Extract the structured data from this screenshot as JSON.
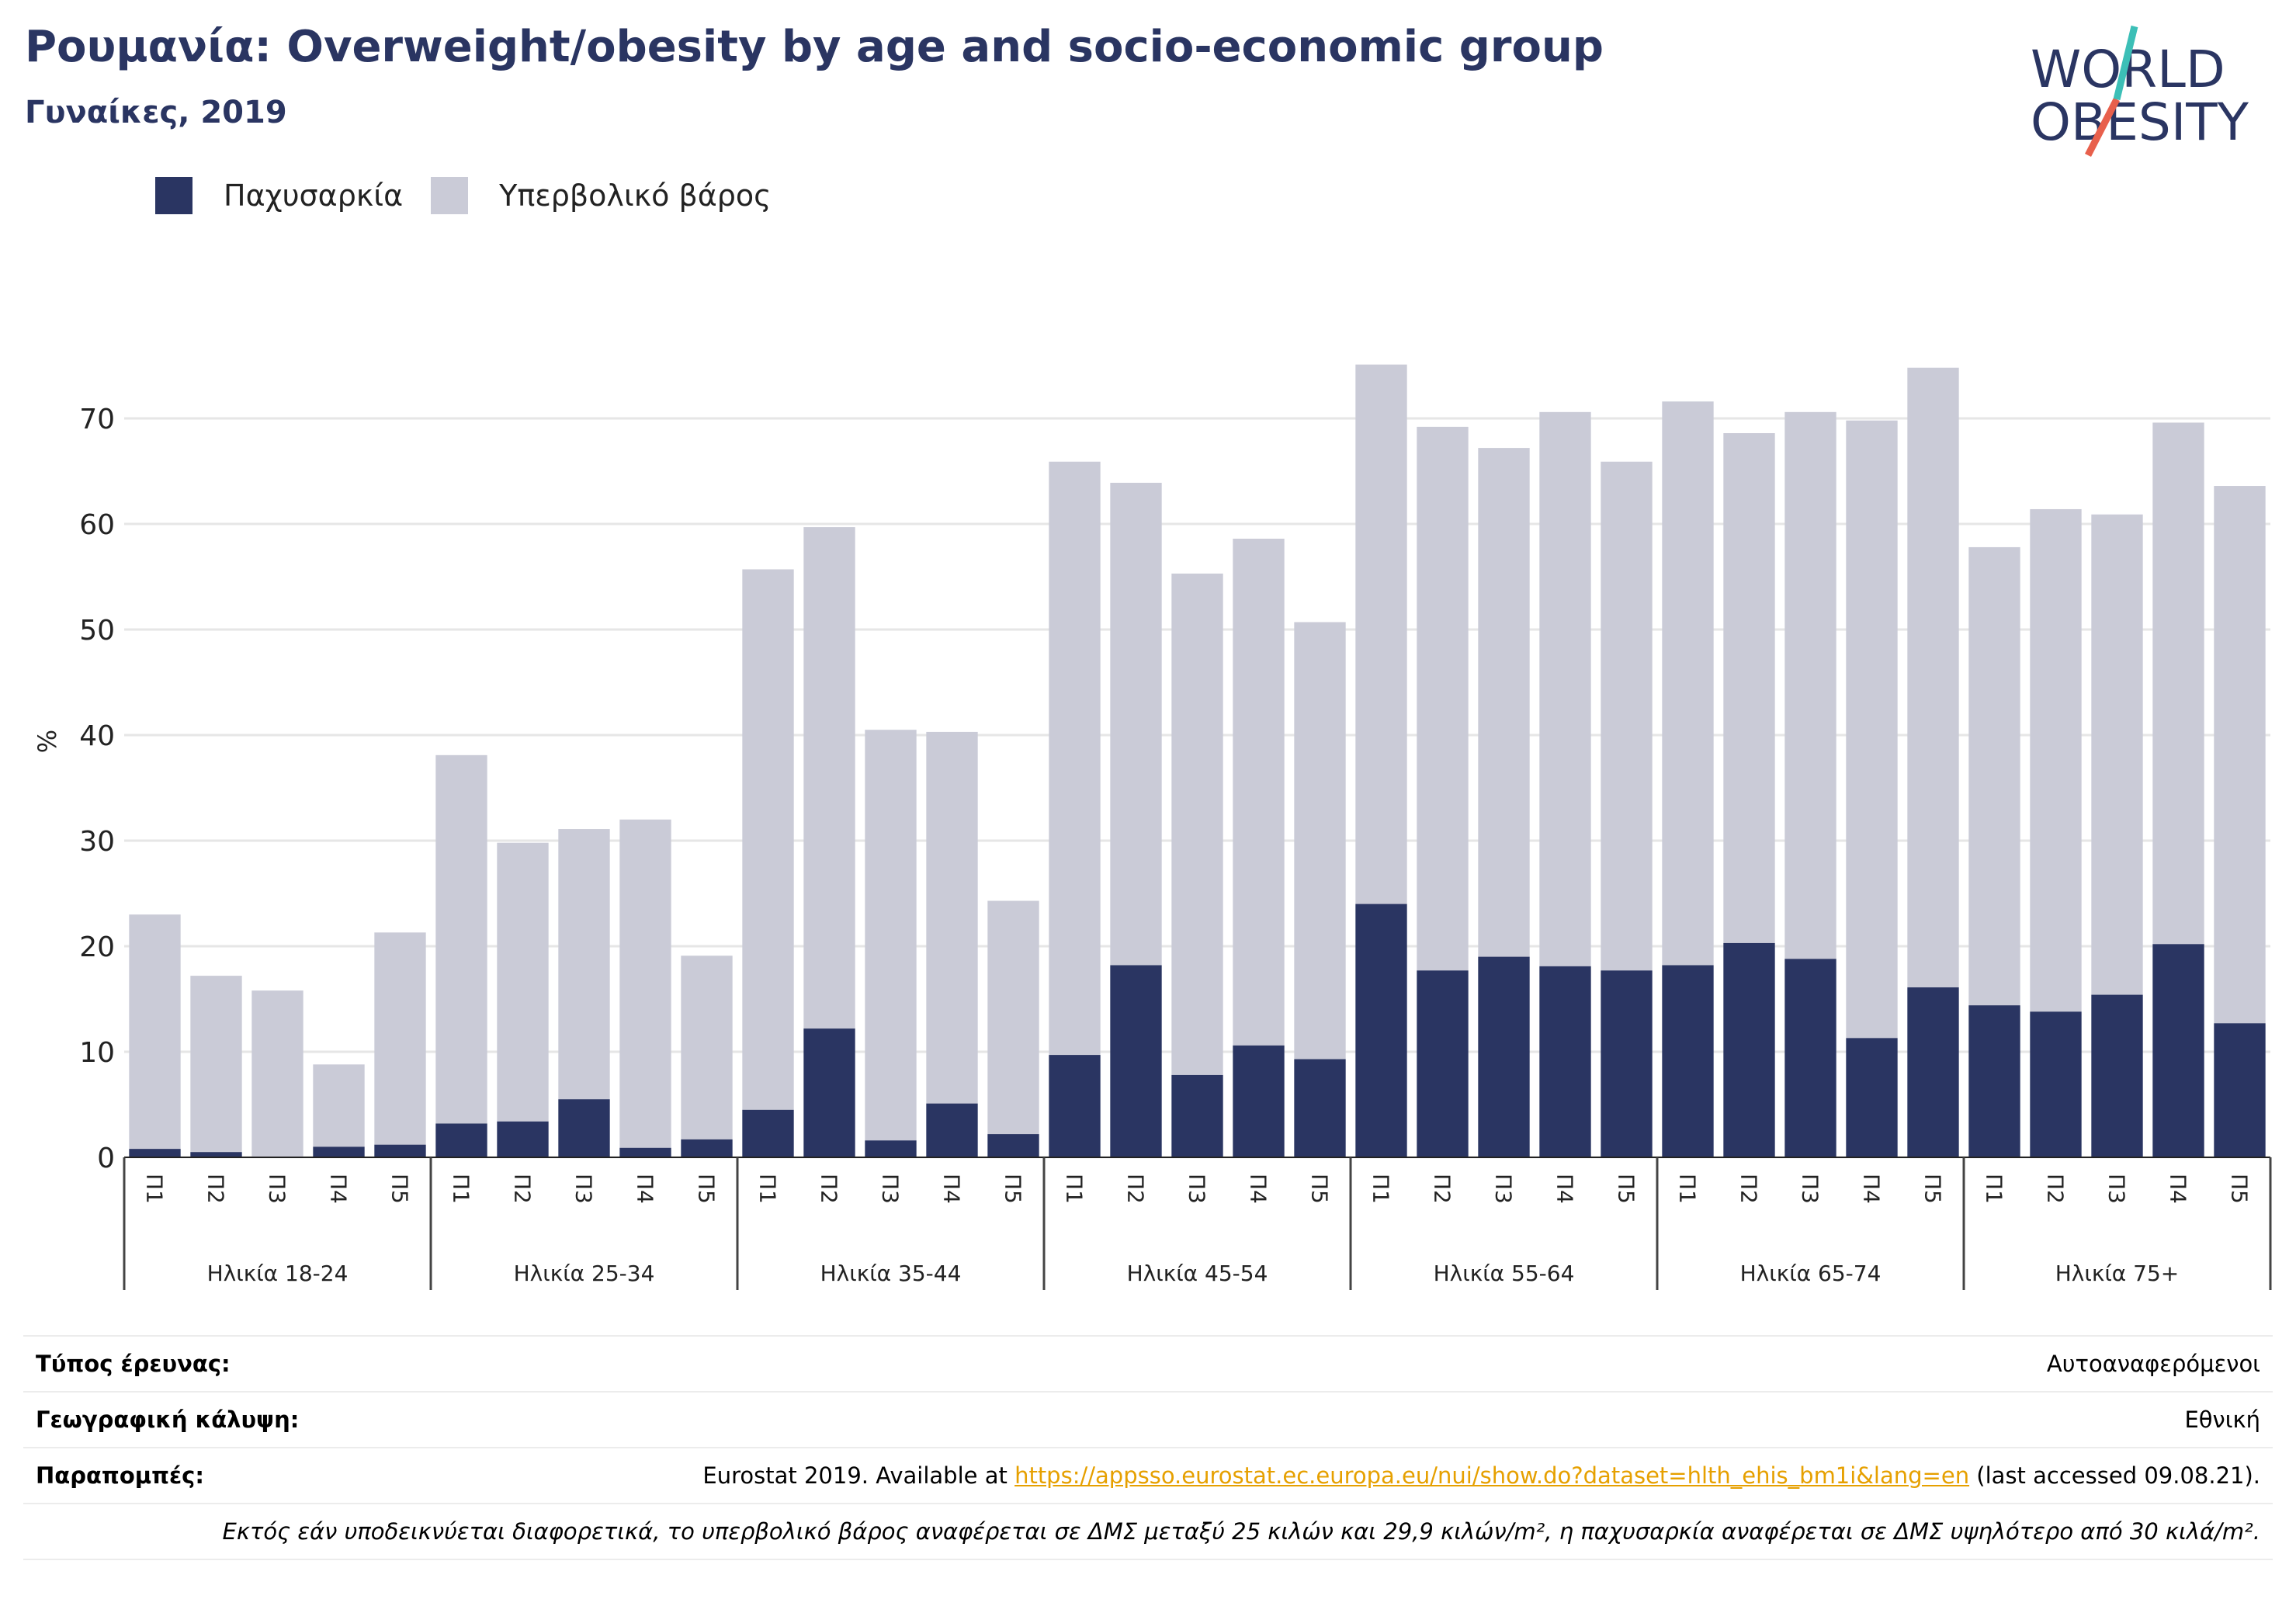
{
  "title": "Ρουμανία: Overweight/obesity by age and socio-economic group",
  "subtitle": "Γυναίκες, 2019",
  "logo": {
    "line1": "WORLD",
    "line2": "OBESITY"
  },
  "colors": {
    "obesity": "#2a3562",
    "overweight": "#cacbd7",
    "title": "#2a3562",
    "link": "#e6a000"
  },
  "chart_data": {
    "type": "bar",
    "stacked": true,
    "ylabel": "%",
    "ylim": [
      0,
      76
    ],
    "yticks": [
      0,
      10,
      20,
      30,
      40,
      50,
      60,
      70
    ],
    "grid": true,
    "legend": "top-left",
    "groups": [
      "Ηλικία 18-24",
      "Ηλικία 25-34",
      "Ηλικία 35-44",
      "Ηλικία 45-54",
      "Ηλικία 55-64",
      "Ηλικία 65-74",
      "Ηλικία 75+"
    ],
    "subcategories": [
      "Π1",
      "Π2",
      "Π3",
      "Π4",
      "Π5"
    ],
    "series": [
      {
        "name": "Παχυσαρκία",
        "values": [
          0.8,
          0.5,
          0.0,
          1.0,
          1.2,
          3.2,
          3.4,
          5.5,
          0.9,
          1.7,
          4.5,
          12.2,
          1.6,
          5.1,
          2.2,
          9.7,
          18.2,
          7.8,
          10.6,
          9.3,
          24.0,
          17.7,
          19.0,
          18.1,
          17.7,
          18.2,
          20.3,
          18.8,
          11.3,
          16.1,
          14.4,
          13.8,
          15.4,
          20.2,
          12.7
        ]
      },
      {
        "name": "Υπερβολικό βάρος",
        "values": [
          22.2,
          16.7,
          15.8,
          7.8,
          20.1,
          34.9,
          26.4,
          25.6,
          31.1,
          17.4,
          51.2,
          47.5,
          38.9,
          35.2,
          22.1,
          56.2,
          45.7,
          47.5,
          48.0,
          41.4,
          51.1,
          51.5,
          48.2,
          52.5,
          48.2,
          53.4,
          48.3,
          51.8,
          58.5,
          58.7,
          43.4,
          47.6,
          45.5,
          49.4,
          50.9
        ]
      }
    ]
  },
  "meta": {
    "survey_label": "Τύπος έρευνας:",
    "survey_value": "Αυτοαναφερόμενοι",
    "coverage_label": "Γεωγραφική κάλυψη:",
    "coverage_value": "Εθνική",
    "references_label": "Παραπομπές:",
    "references_pre": "Eurostat 2019. Available at ",
    "references_link": "https://appsso.eurostat.ec.europa.eu/nui/show.do?dataset=hlth_ehis_bm1i&lang=en",
    "references_post": " (last accessed 09.08.21).",
    "note": "Εκτός εάν υποδεικνύεται διαφορετικά, το υπερβολικό βάρος αναφέρεται σε ΔΜΣ μεταξύ 25 κιλών και 29,9 κιλών/m², η παχυσαρκία αναφέρεται σε ΔΜΣ υψηλότερο από 30 κιλά/m²."
  }
}
